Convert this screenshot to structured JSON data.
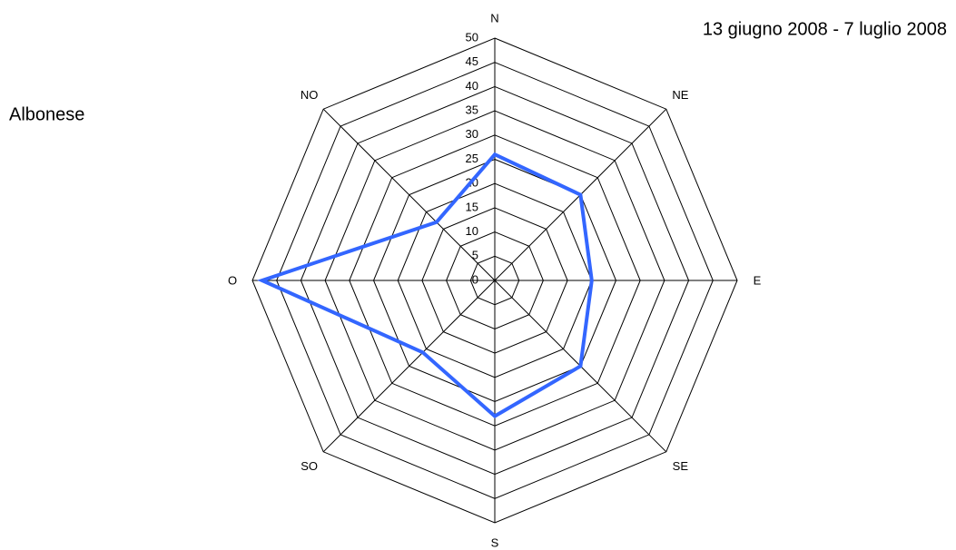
{
  "chart_data": {
    "type": "radar",
    "title": "13 giugno 2008 - 7 luglio 2008",
    "categories": [
      "N",
      "NE",
      "E",
      "SE",
      "S",
      "SO",
      "O",
      "NO"
    ],
    "series": [
      {
        "name": "Albonese",
        "color": "#3366ff",
        "values": [
          26,
          25,
          20,
          25,
          28,
          21,
          48,
          17
        ]
      }
    ],
    "rlim": [
      0,
      50
    ],
    "rticks": [
      0,
      5,
      10,
      15,
      20,
      25,
      30,
      35,
      40,
      45,
      50
    ],
    "grid": true
  }
}
